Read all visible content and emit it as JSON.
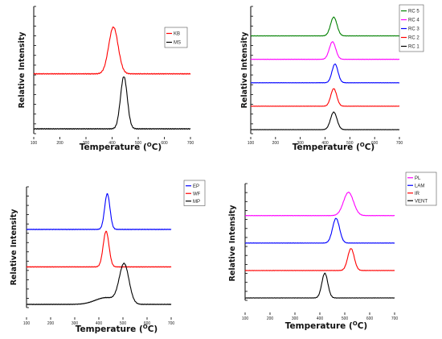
{
  "chart_data": [
    {
      "type": "line",
      "title": "",
      "xlabel": "Temperature (°C)",
      "xlabel_main": "Temperature (",
      "xlabel_unit_o": "O",
      "xlabel_unit_c": "C)",
      "ylabel": "Relative Intensity",
      "xlim": [
        100,
        700
      ],
      "xticks": [
        100,
        200,
        300,
        400,
        500,
        600,
        700
      ],
      "xtick_labels": [
        "100",
        "200",
        "300",
        "400",
        "500",
        "600",
        "700"
      ],
      "y_ticks_count": 13,
      "legend_position": "top-right",
      "series": [
        {
          "name": "KB",
          "color": "#ff0000",
          "offset": 1.0,
          "peaks": [
            {
              "center": 405,
              "width": 18,
              "height": 0.85
            }
          ]
        },
        {
          "name": "MS",
          "color": "#000000",
          "offset": 0.0,
          "peaks": [
            {
              "center": 445,
              "width": 13,
              "height": 0.95
            }
          ]
        }
      ]
    },
    {
      "type": "line",
      "title": "",
      "xlabel": "Temperature (°C)",
      "xlabel_main": "Temperature (",
      "xlabel_unit_o": "O",
      "xlabel_unit_c": "C)",
      "ylabel": "Relative Intensity",
      "xlim": [
        100,
        700
      ],
      "xticks": [
        100,
        200,
        300,
        400,
        500,
        600,
        700
      ],
      "xtick_labels": [
        "100",
        "200",
        "300",
        "400",
        "500",
        "600",
        "700"
      ],
      "y_ticks_count": 13,
      "legend_position": "top-right",
      "series": [
        {
          "name": "RC 5",
          "color": "#008000",
          "offset": 4.0,
          "peaks": [
            {
              "center": 435,
              "width": 13,
              "height": 0.8
            }
          ]
        },
        {
          "name": "RC 4",
          "color": "#ff00ff",
          "offset": 3.0,
          "peaks": [
            {
              "center": 430,
              "width": 13,
              "height": 0.75
            }
          ]
        },
        {
          "name": "RC 3",
          "color": "#0000ff",
          "offset": 2.0,
          "peaks": [
            {
              "center": 440,
              "width": 12,
              "height": 0.8
            }
          ]
        },
        {
          "name": "RC 2",
          "color": "#ff0000",
          "offset": 1.0,
          "peaks": [
            {
              "center": 435,
              "width": 12,
              "height": 0.75
            }
          ]
        },
        {
          "name": "RC 1",
          "color": "#000000",
          "offset": 0.0,
          "peaks": [
            {
              "center": 435,
              "width": 13,
              "height": 0.75
            }
          ]
        }
      ]
    },
    {
      "type": "line",
      "title": "",
      "xlabel": "Temperature (°C)",
      "xlabel_main": "Temperature (",
      "xlabel_unit_o": "O",
      "xlabel_unit_c": "C)",
      "ylabel": "Relative Intensity",
      "xlim": [
        100,
        700
      ],
      "xticks": [
        100,
        200,
        300,
        400,
        500,
        600,
        700
      ],
      "xtick_labels": [
        "100",
        "200",
        "300",
        "400",
        "500",
        "600",
        "700"
      ],
      "y_ticks_count": 13,
      "legend_position": "top-right",
      "series": [
        {
          "name": "EP",
          "color": "#0000ff",
          "offset": 2.0,
          "peaks": [
            {
              "center": 435,
              "width": 11,
              "height": 0.95
            }
          ]
        },
        {
          "name": "WF",
          "color": "#ff0000",
          "offset": 1.0,
          "peaks": [
            {
              "center": 430,
              "width": 12,
              "height": 0.95
            }
          ]
        },
        {
          "name": "MP",
          "color": "#000000",
          "offset": 0.0,
          "peaks": [
            {
              "center": 505,
              "width": 20,
              "height": 1.05
            },
            {
              "center": 430,
              "width": 45,
              "height": 0.18
            }
          ]
        }
      ]
    },
    {
      "type": "line",
      "title": "",
      "xlabel": "Temperature (°C)",
      "xlabel_main": "Temperature (",
      "xlabel_unit_o": "O",
      "xlabel_unit_c": "C)",
      "ylabel": "Relative Intensity",
      "xlim": [
        100,
        700
      ],
      "xticks": [
        100,
        200,
        300,
        400,
        500,
        600,
        700
      ],
      "xtick_labels": [
        "100",
        "200",
        "300",
        "400",
        "500",
        "600",
        "700"
      ],
      "y_ticks_count": 13,
      "legend_position": "top-right",
      "series": [
        {
          "name": "PL",
          "color": "#ff00ff",
          "offset": 3.0,
          "peaks": [
            {
              "center": 515,
              "width": 20,
              "height": 0.85
            }
          ]
        },
        {
          "name": "LAM",
          "color": "#0000ff",
          "offset": 2.0,
          "peaks": [
            {
              "center": 465,
              "width": 14,
              "height": 0.9
            }
          ]
        },
        {
          "name": "IR",
          "color": "#ff0000",
          "offset": 1.0,
          "peaks": [
            {
              "center": 525,
              "width": 13,
              "height": 0.8
            }
          ]
        },
        {
          "name": "VENT",
          "color": "#000000",
          "offset": 0.0,
          "peaks": [
            {
              "center": 420,
              "width": 12,
              "height": 0.9
            }
          ]
        }
      ]
    }
  ]
}
